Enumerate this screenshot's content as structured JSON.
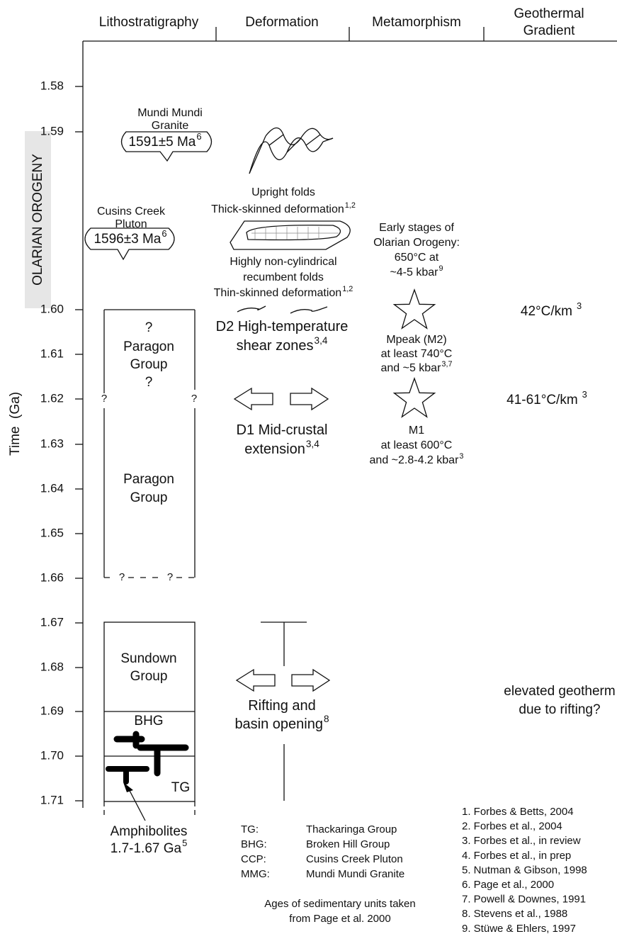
{
  "header": {
    "columns": [
      [
        "Lithostratigraphy"
      ],
      [
        "Deformation"
      ],
      [
        "Metamorphism"
      ],
      [
        "Geothermal",
        "Gradient"
      ]
    ]
  },
  "axis": {
    "label": "Time  (Ga)",
    "ticks": [
      "1.58",
      "1.59",
      "1.60",
      "1.61",
      "1.62",
      "1.63",
      "1.64",
      "1.65",
      "1.66",
      "1.67",
      "1.68",
      "1.69",
      "1.70",
      "1.71"
    ]
  },
  "orogeny_label": "OLARIAN OROGENY",
  "lithostratigraphy": {
    "mundi": {
      "name": [
        "Mundi Mundi",
        "Granite"
      ],
      "age": {
        "text": "1591±5 Ma",
        "sup": "6"
      }
    },
    "cusins": {
      "name": [
        "Cusins Creek",
        "Pluton"
      ],
      "age": {
        "text": "1596±3 Ma",
        "sup": "6"
      }
    },
    "paragon_upper": [
      "?",
      "Paragon",
      "Group",
      "?"
    ],
    "side_marks": [
      "?",
      "?"
    ],
    "paragon_lower": [
      "Paragon",
      "Group"
    ],
    "base_marks": [
      "?",
      "?"
    ],
    "sundown": [
      "Sundown",
      "Group"
    ],
    "bhg": "BHG",
    "tg": "TG",
    "amphibolites": {
      "lines": [
        "Amphibolites",
        "1.7-1.67 Ga"
      ],
      "sup": "5"
    }
  },
  "deformation": {
    "upright": {
      "lines": [
        "Upright folds",
        "Thick-skinned deformation"
      ],
      "sup": "1,2"
    },
    "recumbent": {
      "lines": [
        "Highly non-cylindrical",
        "recumbent folds",
        "Thin-skinned deformation"
      ],
      "sup": "1,2"
    },
    "d2": {
      "lines": [
        "D2 High-temperature",
        "shear zones"
      ],
      "sup": "3,4"
    },
    "d1": {
      "lines": [
        "D1 Mid-crustal",
        "extension"
      ],
      "sup": "3,4"
    },
    "rifting": {
      "lines": [
        "Rifting and",
        "basin opening"
      ],
      "sup": "8"
    }
  },
  "metamorphism": {
    "early": {
      "lines": [
        "Early stages of",
        "Olarian Orogeny:",
        "650°C at",
        "~4-5 kbar"
      ],
      "sup": "9"
    },
    "mpeak": {
      "lines": [
        "Mpeak (M2)",
        "at least 740°C",
        "and ~5 kbar"
      ],
      "sup": "3,7"
    },
    "m1": {
      "lines": [
        "M1",
        "at least 600°C",
        "and ~2.8-4.2 kbar"
      ],
      "sup": "3"
    }
  },
  "geothermal": {
    "upper": {
      "text": "42°C/km",
      "sup": "3"
    },
    "middle": {
      "text": "41-61°C/km",
      "sup": "3"
    },
    "lower": {
      "lines": [
        "elevated geotherm",
        "due to rifting?"
      ]
    }
  },
  "abbreviations": [
    [
      "TG:",
      "Thackaringa Group"
    ],
    [
      "BHG:",
      "Broken Hill Group"
    ],
    [
      "CCP:",
      "Cusins Creek Pluton"
    ],
    [
      "MMG:",
      "Mundi Mundi Granite"
    ]
  ],
  "note": [
    "Ages of sedimentary units taken",
    "from Page et al. 2000"
  ],
  "references": [
    "1. Forbes & Betts, 2004",
    "2. Forbes et al., 2004",
    "3. Forbes et al., in review",
    "4. Forbes et al., in prep",
    "5. Nutman & Gibson, 1998",
    "6. Page et al., 2000",
    "7. Powell & Downes, 1991",
    "8. Stevens et al., 1988",
    "9. Stüwe & Ehlers, 1997"
  ]
}
